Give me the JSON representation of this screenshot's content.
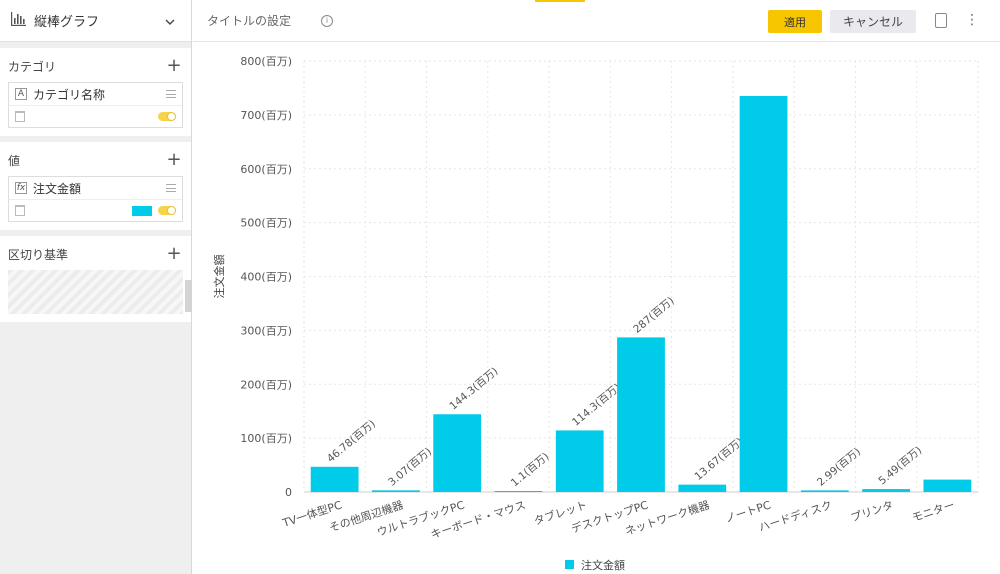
{
  "app": {
    "chart_type_name": "縦棒グラフ"
  },
  "sidebar": {
    "category": {
      "label": "カテゴリ",
      "field_name": "カテゴリ名称",
      "field_icon": "A"
    },
    "value": {
      "label": "値",
      "field_name": "注文金額",
      "field_icon": "fx",
      "color": "#00ccea"
    },
    "split": {
      "label": "区切り基準"
    }
  },
  "toolbar": {
    "title_placeholder": "タイトルの設定",
    "apply_label": "適用",
    "cancel_label": "キャンセル"
  },
  "colors": {
    "accent": "#f7c600",
    "bar": "#00ccea"
  },
  "chart_data": {
    "type": "bar",
    "ylabel": "注文金額",
    "ylim": [
      0,
      800
    ],
    "yticks": [
      0,
      100,
      200,
      300,
      400,
      500,
      600,
      700,
      800
    ],
    "ytick_labels": [
      "0",
      "100(百万)",
      "200(百万)",
      "300(百万)",
      "400(百万)",
      "500(百万)",
      "600(百万)",
      "700(百万)",
      "800(百万)"
    ],
    "categories": [
      "TV一体型PC",
      "その他周辺機器",
      "ウルトラブックPC",
      "キーボード・マウス",
      "タブレット",
      "デスクトップPC",
      "ネットワーク機器",
      "ノートPC",
      "ハードディスク",
      "プリンタ",
      "モニター"
    ],
    "series": [
      {
        "name": "注文金額",
        "values": [
          46.78,
          3.07,
          144.3,
          1.1,
          114.3,
          287,
          13.67,
          735,
          2.99,
          5.49,
          23
        ],
        "data_labels": [
          "46.78(百万)",
          "3.07(百万)",
          "144.3(百万)",
          "1.1(百万)",
          "114.3(百万)",
          "287(百万)",
          "13.67(百万)",
          "",
          "2.99(百万)",
          "5.49(百万)",
          ""
        ]
      }
    ],
    "grid": true,
    "legend": "bottom-center"
  }
}
